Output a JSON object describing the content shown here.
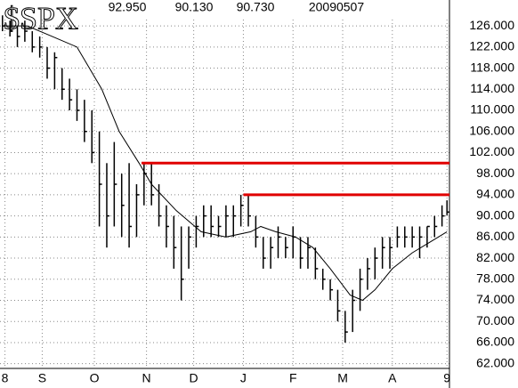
{
  "chart_data": {
    "type": "ohlc",
    "title": "$SPX",
    "stats": [
      "92.950",
      "90.130",
      "90.730"
    ],
    "date": "20090507",
    "x": [
      0,
      3,
      6,
      9,
      12,
      15,
      18,
      21,
      24,
      27,
      30,
      33,
      36,
      39,
      42,
      45,
      48,
      51,
      54,
      57,
      60,
      63,
      66,
      69,
      72,
      75,
      78,
      81,
      84,
      87,
      90,
      93,
      96,
      99,
      102,
      105,
      108,
      111,
      114,
      117,
      120,
      123,
      126,
      129,
      132,
      135,
      138,
      141,
      144,
      147,
      150,
      153,
      156,
      159,
      162,
      165,
      168,
      171,
      174,
      177,
      179
    ],
    "high": [
      128,
      127,
      126,
      127,
      125,
      124,
      122,
      121,
      118,
      116,
      114,
      112,
      110,
      106,
      100,
      104,
      98,
      100,
      96,
      100,
      100,
      96,
      92,
      90,
      88,
      88,
      90,
      92,
      92,
      90,
      92,
      92,
      94,
      94,
      90,
      86,
      86,
      88,
      86,
      88,
      86,
      86,
      84,
      80,
      78,
      76,
      72,
      76,
      80,
      82,
      84,
      86,
      86,
      88,
      88,
      88,
      88,
      88,
      90,
      92,
      92.95
    ],
    "low": [
      125,
      124,
      122,
      123,
      121,
      120,
      116,
      114,
      112,
      110,
      108,
      104,
      100,
      88,
      84,
      88,
      86,
      84,
      86,
      92,
      92,
      88,
      84,
      80,
      74,
      80,
      84,
      86,
      86,
      86,
      86,
      86,
      88,
      88,
      84,
      80,
      80,
      82,
      82,
      82,
      80,
      80,
      78,
      76,
      74,
      70,
      66,
      68,
      72,
      76,
      78,
      80,
      80,
      84,
      84,
      84,
      82,
      84,
      86,
      88,
      90.13
    ],
    "close": [
      126,
      125,
      124,
      125,
      122,
      122,
      118,
      120,
      114,
      112,
      110,
      106,
      102,
      96,
      90,
      96,
      92,
      88,
      94,
      98,
      94,
      90,
      88,
      84,
      78,
      86,
      88,
      90,
      88,
      88,
      90,
      90,
      92,
      90,
      86,
      82,
      84,
      86,
      84,
      86,
      82,
      84,
      80,
      78,
      76,
      72,
      68,
      74,
      78,
      80,
      82,
      84,
      84,
      86,
      86,
      86,
      86,
      88,
      88,
      90,
      90.73
    ],
    "bar_color": "#000000",
    "ma": {
      "x": [
        0,
        10,
        20,
        30,
        40,
        47,
        55,
        60,
        70,
        80,
        90,
        100,
        104,
        110,
        118,
        125,
        132,
        140,
        145,
        150,
        157,
        165,
        172,
        179
      ],
      "values": [
        126,
        126,
        124,
        122,
        114,
        106,
        100,
        96,
        91,
        87,
        86,
        87,
        88,
        87,
        86,
        84,
        80,
        75,
        74,
        76,
        80,
        83,
        85,
        87
      ],
      "color": "#000000"
    },
    "hlines": [
      {
        "value": 100,
        "x_start": 56,
        "color": "#e00000"
      },
      {
        "value": 94,
        "x_start": 97,
        "color": "#e00000"
      }
    ],
    "xlim": [
      -1,
      180
    ],
    "xticks": [
      {
        "value": 1,
        "label": "8"
      },
      {
        "value": 16,
        "label": "S"
      },
      {
        "value": 37,
        "label": "O"
      },
      {
        "value": 58,
        "label": "N"
      },
      {
        "value": 77,
        "label": "D"
      },
      {
        "value": 97,
        "label": "J"
      },
      {
        "value": 117,
        "label": "F"
      },
      {
        "value": 137,
        "label": "M"
      },
      {
        "value": 157,
        "label": "A"
      },
      {
        "value": 179,
        "label": "9"
      }
    ],
    "ylim": [
      61.1,
      127.2
    ],
    "yticks": [
      {
        "value": 62,
        "label": "62.000"
      },
      {
        "value": 66,
        "label": "66.000"
      },
      {
        "value": 70,
        "label": "70.000"
      },
      {
        "value": 74,
        "label": "74.000"
      },
      {
        "value": 78,
        "label": "78.000"
      },
      {
        "value": 82,
        "label": "82.000"
      },
      {
        "value": 86,
        "label": "86.000"
      },
      {
        "value": 90,
        "label": "90.000"
      },
      {
        "value": 94,
        "label": "94.000"
      },
      {
        "value": 98,
        "label": "98.000"
      },
      {
        "value": 102,
        "label": "102.000"
      },
      {
        "value": 106,
        "label": "106.000"
      },
      {
        "value": 110,
        "label": "110.000"
      },
      {
        "value": 114,
        "label": "114.000"
      },
      {
        "value": 118,
        "label": "118.000"
      },
      {
        "value": 122,
        "label": "122.000"
      },
      {
        "value": 126,
        "label": "126.000"
      }
    ],
    "grid": true
  }
}
